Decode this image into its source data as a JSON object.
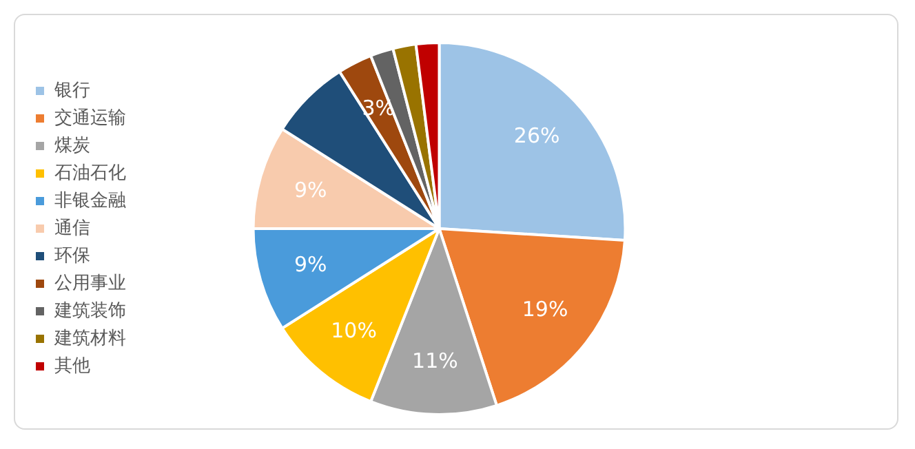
{
  "chart_data": {
    "type": "pie",
    "categories": [
      "银行",
      "交通运输",
      "煤炭",
      "石油石化",
      "非银金融",
      "通信",
      "环保",
      "公用事业",
      "建筑装饰",
      "建筑材料",
      "其他"
    ],
    "values": [
      26,
      19,
      11,
      10,
      9,
      9,
      7,
      3,
      2,
      2,
      2
    ],
    "value_labels": [
      "26%",
      "19%",
      "11%",
      "10%",
      "9%",
      "9%",
      null,
      "3%",
      null,
      null,
      null
    ],
    "colors": [
      "#9dc3e6",
      "#ed7d31",
      "#a5a5a5",
      "#ffc000",
      "#4a9bdb",
      "#f8cbad",
      "#1f4e79",
      "#9e480e",
      "#636363",
      "#997300",
      "#c00000"
    ],
    "legend": "left"
  }
}
